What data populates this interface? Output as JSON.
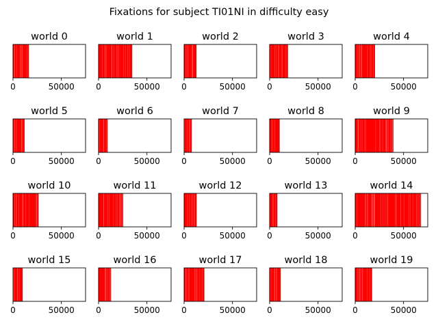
{
  "figure": {
    "suptitle": "Fixations for subject TI01NI in difficulty easy",
    "background": "#ffffff",
    "mark_color": "#ff0000"
  },
  "chart_data": {
    "type": "heatmap",
    "xlim": [
      0,
      75000
    ],
    "x_ticks": [
      0,
      50000
    ],
    "x_tick_labels": [
      "0",
      "50000"
    ],
    "y_ticks": [],
    "grid": false,
    "legend": "none",
    "panels": [
      {
        "title": "world 0",
        "extent": [
          0,
          16500
        ]
      },
      {
        "title": "world 1",
        "extent": [
          0,
          34800
        ]
      },
      {
        "title": "world 2",
        "extent": [
          0,
          12800
        ]
      },
      {
        "title": "world 3",
        "extent": [
          0,
          19000
        ]
      },
      {
        "title": "world 4",
        "extent": [
          0,
          20500
        ]
      },
      {
        "title": "world 5",
        "extent": [
          0,
          12000
        ]
      },
      {
        "title": "world 6",
        "extent": [
          0,
          9500
        ]
      },
      {
        "title": "world 7",
        "extent": [
          0,
          8000
        ]
      },
      {
        "title": "world 8",
        "extent": [
          0,
          10500
        ]
      },
      {
        "title": "world 9",
        "extent": [
          0,
          39500
        ]
      },
      {
        "title": "world 10",
        "extent": [
          0,
          26500
        ]
      },
      {
        "title": "world 11",
        "extent": [
          0,
          25500
        ]
      },
      {
        "title": "world 12",
        "extent": [
          0,
          13000
        ]
      },
      {
        "title": "world 13",
        "extent": [
          0,
          8000
        ]
      },
      {
        "title": "world 14",
        "extent": [
          0,
          68000
        ]
      },
      {
        "title": "world 15",
        "extent": [
          0,
          10000
        ]
      },
      {
        "title": "world 16",
        "extent": [
          0,
          13000
        ]
      },
      {
        "title": "world 17",
        "extent": [
          0,
          21000
        ]
      },
      {
        "title": "world 18",
        "extent": [
          0,
          11500
        ]
      },
      {
        "title": "world 19",
        "extent": [
          0,
          17500
        ]
      }
    ]
  }
}
